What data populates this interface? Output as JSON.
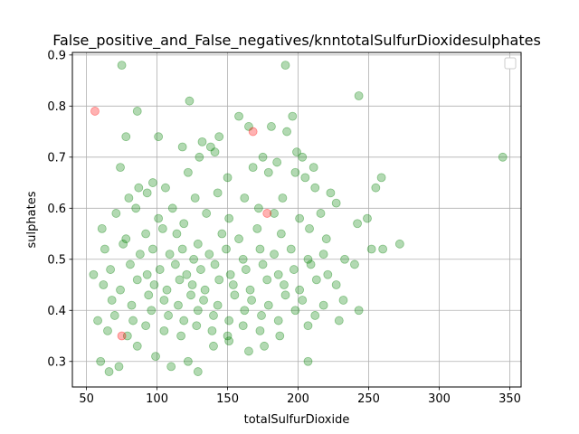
{
  "chart_data": {
    "type": "scatter",
    "title": "False_positive_and_False_negatives/knntotalSulfurDioxidesulphates",
    "xlabel": "totalSulfurDioxide",
    "ylabel": "sulphates",
    "xlim": [
      40,
      358
    ],
    "ylim": [
      0.25,
      0.905
    ],
    "xticks": [
      "50",
      "100",
      "150",
      "200",
      "250",
      "300",
      "350"
    ],
    "yticks": [
      "0.3",
      "0.4",
      "0.5",
      "0.6",
      "0.7",
      "0.8",
      "0.9"
    ],
    "grid": true,
    "legend_box": "top-right (empty)",
    "colors": {
      "correct": "#008000",
      "misclassified": "#ff0000"
    },
    "point_alpha": 0.3,
    "series": [
      {
        "color": "#008000",
        "points": [
          [
            75,
            0.88
          ],
          [
            191,
            0.88
          ],
          [
            243,
            0.82
          ],
          [
            123,
            0.81
          ],
          [
            86,
            0.79
          ],
          [
            158,
            0.78
          ],
          [
            196,
            0.78
          ],
          [
            144,
            0.74
          ],
          [
            192,
            0.75
          ],
          [
            78,
            0.74
          ],
          [
            101,
            0.74
          ],
          [
            132,
            0.73
          ],
          [
            165,
            0.76
          ],
          [
            181,
            0.76
          ],
          [
            345,
            0.7
          ],
          [
            130,
            0.7
          ],
          [
            141,
            0.71
          ],
          [
            175,
            0.7
          ],
          [
            199,
            0.71
          ],
          [
            203,
            0.7
          ],
          [
            211,
            0.68
          ],
          [
            74,
            0.68
          ],
          [
            118,
            0.72
          ],
          [
            138,
            0.72
          ],
          [
            168,
            0.68
          ],
          [
            185,
            0.69
          ],
          [
            198,
            0.67
          ],
          [
            259,
            0.66
          ],
          [
            87,
            0.64
          ],
          [
            97,
            0.65
          ],
          [
            106,
            0.64
          ],
          [
            122,
            0.67
          ],
          [
            150,
            0.66
          ],
          [
            179,
            0.67
          ],
          [
            205,
            0.66
          ],
          [
            212,
            0.64
          ],
          [
            223,
            0.63
          ],
          [
            255,
            0.64
          ],
          [
            80,
            0.62
          ],
          [
            93,
            0.63
          ],
          [
            111,
            0.6
          ],
          [
            127,
            0.62
          ],
          [
            143,
            0.63
          ],
          [
            162,
            0.62
          ],
          [
            189,
            0.62
          ],
          [
            227,
            0.61
          ],
          [
            71,
            0.59
          ],
          [
            85,
            0.6
          ],
          [
            101,
            0.58
          ],
          [
            119,
            0.57
          ],
          [
            135,
            0.59
          ],
          [
            151,
            0.58
          ],
          [
            172,
            0.6
          ],
          [
            183,
            0.59
          ],
          [
            201,
            0.58
          ],
          [
            216,
            0.59
          ],
          [
            242,
            0.57
          ],
          [
            61,
            0.56
          ],
          [
            78,
            0.54
          ],
          [
            92,
            0.55
          ],
          [
            104,
            0.56
          ],
          [
            114,
            0.55
          ],
          [
            129,
            0.53
          ],
          [
            146,
            0.55
          ],
          [
            158,
            0.54
          ],
          [
            171,
            0.56
          ],
          [
            188,
            0.55
          ],
          [
            208,
            0.56
          ],
          [
            220,
            0.54
          ],
          [
            249,
            0.58
          ],
          [
            63,
            0.52
          ],
          [
            76,
            0.53
          ],
          [
            88,
            0.51
          ],
          [
            97,
            0.52
          ],
          [
            109,
            0.51
          ],
          [
            118,
            0.52
          ],
          [
            126,
            0.5
          ],
          [
            137,
            0.51
          ],
          [
            149,
            0.52
          ],
          [
            161,
            0.5
          ],
          [
            173,
            0.52
          ],
          [
            183,
            0.51
          ],
          [
            195,
            0.52
          ],
          [
            207,
            0.5
          ],
          [
            218,
            0.51
          ],
          [
            233,
            0.5
          ],
          [
            252,
            0.52
          ],
          [
            272,
            0.53
          ],
          [
            55,
            0.47
          ],
          [
            67,
            0.48
          ],
          [
            81,
            0.49
          ],
          [
            93,
            0.47
          ],
          [
            102,
            0.48
          ],
          [
            113,
            0.49
          ],
          [
            121,
            0.47
          ],
          [
            131,
            0.48
          ],
          [
            141,
            0.49
          ],
          [
            152,
            0.47
          ],
          [
            163,
            0.48
          ],
          [
            175,
            0.49
          ],
          [
            186,
            0.47
          ],
          [
            197,
            0.48
          ],
          [
            209,
            0.49
          ],
          [
            221,
            0.47
          ],
          [
            240,
            0.49
          ],
          [
            260,
            0.52
          ],
          [
            62,
            0.45
          ],
          [
            74,
            0.44
          ],
          [
            86,
            0.46
          ],
          [
            98,
            0.45
          ],
          [
            107,
            0.44
          ],
          [
            116,
            0.46
          ],
          [
            125,
            0.45
          ],
          [
            134,
            0.44
          ],
          [
            144,
            0.46
          ],
          [
            154,
            0.45
          ],
          [
            166,
            0.44
          ],
          [
            178,
            0.46
          ],
          [
            190,
            0.45
          ],
          [
            201,
            0.44
          ],
          [
            213,
            0.46
          ],
          [
            227,
            0.45
          ],
          [
            68,
            0.42
          ],
          [
            82,
            0.41
          ],
          [
            94,
            0.43
          ],
          [
            105,
            0.42
          ],
          [
            115,
            0.41
          ],
          [
            124,
            0.43
          ],
          [
            133,
            0.42
          ],
          [
            143,
            0.41
          ],
          [
            155,
            0.43
          ],
          [
            167,
            0.42
          ],
          [
            179,
            0.41
          ],
          [
            191,
            0.43
          ],
          [
            203,
            0.42
          ],
          [
            218,
            0.41
          ],
          [
            232,
            0.42
          ],
          [
            58,
            0.38
          ],
          [
            70,
            0.39
          ],
          [
            83,
            0.38
          ],
          [
            96,
            0.4
          ],
          [
            108,
            0.39
          ],
          [
            119,
            0.38
          ],
          [
            129,
            0.4
          ],
          [
            140,
            0.39
          ],
          [
            151,
            0.38
          ],
          [
            162,
            0.4
          ],
          [
            174,
            0.39
          ],
          [
            186,
            0.38
          ],
          [
            198,
            0.4
          ],
          [
            212,
            0.39
          ],
          [
            229,
            0.38
          ],
          [
            243,
            0.4
          ],
          [
            65,
            0.36
          ],
          [
            79,
            0.35
          ],
          [
            92,
            0.37
          ],
          [
            105,
            0.36
          ],
          [
            117,
            0.35
          ],
          [
            128,
            0.37
          ],
          [
            139,
            0.36
          ],
          [
            150,
            0.35
          ],
          [
            161,
            0.37
          ],
          [
            173,
            0.36
          ],
          [
            187,
            0.35
          ],
          [
            207,
            0.37
          ],
          [
            60,
            0.3
          ],
          [
            66,
            0.28
          ],
          [
            73,
            0.29
          ],
          [
            86,
            0.33
          ],
          [
            99,
            0.31
          ],
          [
            110,
            0.29
          ],
          [
            122,
            0.3
          ],
          [
            129,
            0.28
          ],
          [
            140,
            0.33
          ],
          [
            151,
            0.34
          ],
          [
            165,
            0.32
          ],
          [
            176,
            0.33
          ],
          [
            207,
            0.3
          ]
        ]
      },
      {
        "color": "#ff0000",
        "points": [
          [
            56,
            0.79
          ],
          [
            168,
            0.75
          ],
          [
            178,
            0.59
          ],
          [
            75,
            0.35
          ]
        ]
      }
    ]
  }
}
